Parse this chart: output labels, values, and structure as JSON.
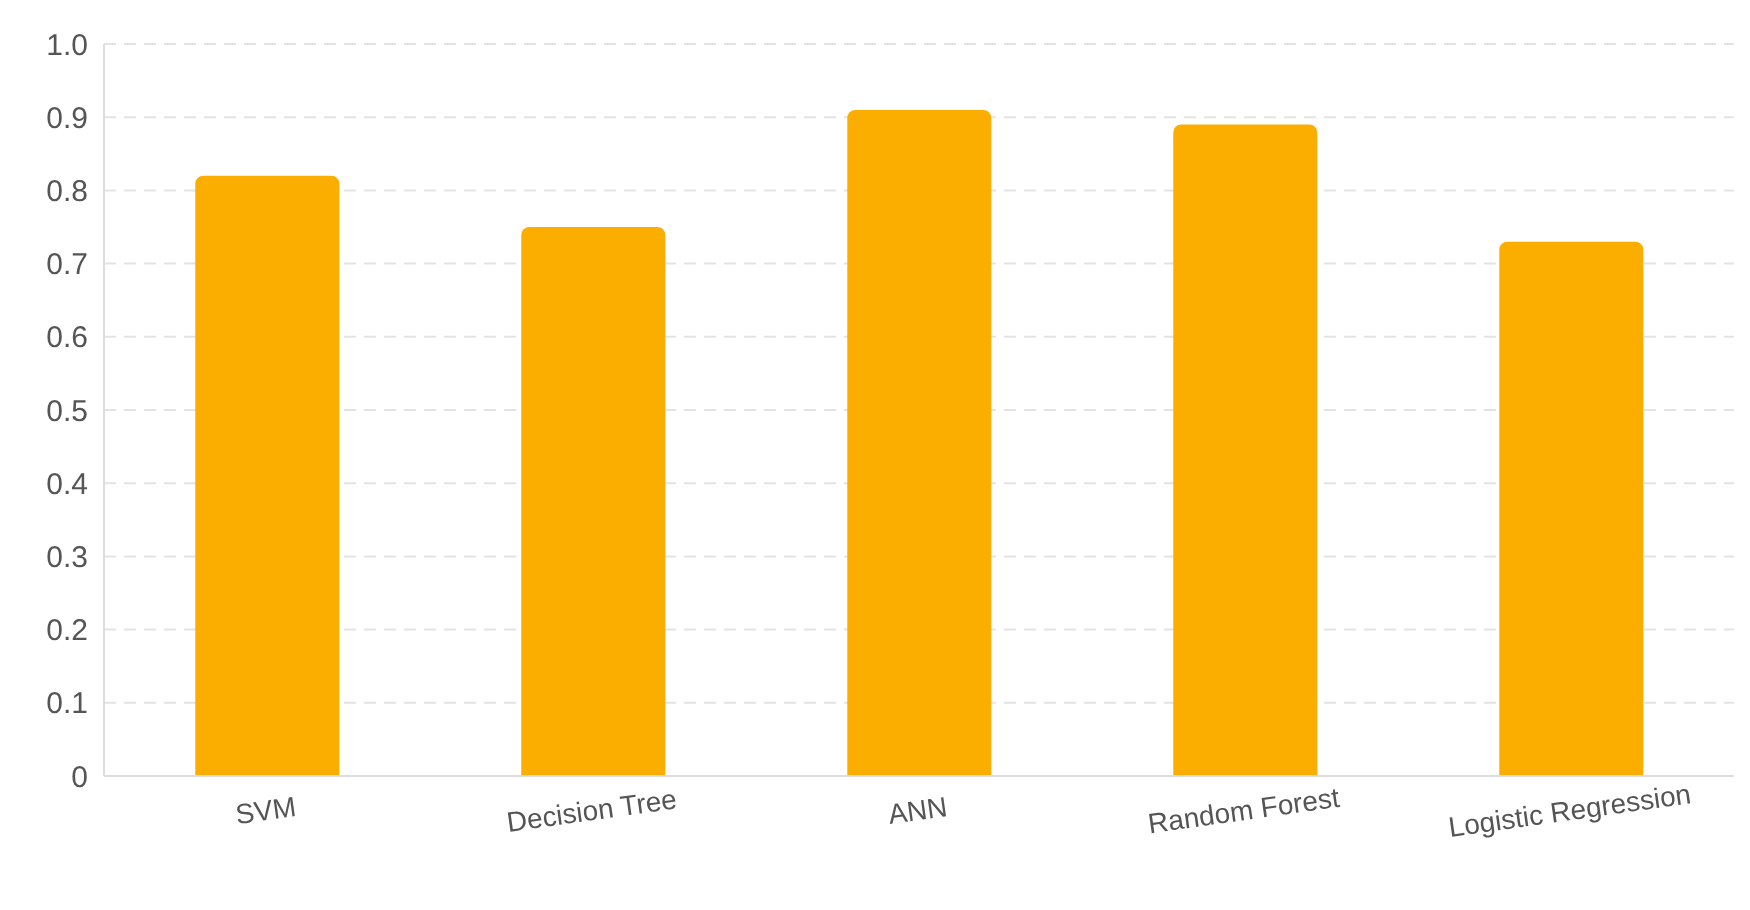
{
  "chart_data": {
    "type": "bar",
    "categories": [
      "SVM",
      "Decision Tree",
      "ANN",
      "Random Forest",
      "Logistic Regression"
    ],
    "values": [
      0.82,
      0.75,
      0.91,
      0.89,
      0.73
    ],
    "color": "#fbae00",
    "ylim": [
      0,
      1
    ],
    "yticks": [
      0,
      0.1,
      0.2,
      0.3,
      0.4,
      0.5,
      0.6,
      0.7,
      0.8,
      0.9,
      {
        "value": 1,
        "label": "1.0"
      }
    ],
    "grid": "y"
  }
}
